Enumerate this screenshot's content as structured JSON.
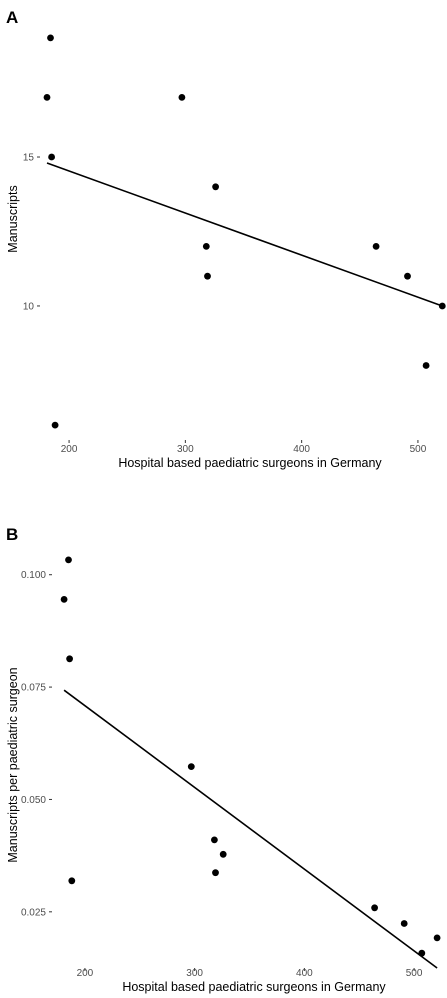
{
  "chart_data": [
    {
      "panel_label": "A",
      "type": "scatter",
      "xlabel": "Hospital based paediatric surgeons in Germany",
      "ylabel": "Manuscripts",
      "xlim": [
        175,
        525
      ],
      "ylim": [
        5.5,
        19.6
      ],
      "xticks": [
        200,
        300,
        400,
        500
      ],
      "xtick_labels": [
        "200",
        "300",
        "400",
        "500"
      ],
      "yticks": [
        10,
        15
      ],
      "ytick_labels": [
        "10",
        "15"
      ],
      "grid": false,
      "legend": "none",
      "points": [
        {
          "x": 184,
          "y": 19
        },
        {
          "x": 181,
          "y": 17
        },
        {
          "x": 185,
          "y": 15
        },
        {
          "x": 188,
          "y": 6
        },
        {
          "x": 297,
          "y": 17
        },
        {
          "x": 326,
          "y": 14
        },
        {
          "x": 318,
          "y": 12
        },
        {
          "x": 319,
          "y": 11
        },
        {
          "x": 464,
          "y": 12
        },
        {
          "x": 491,
          "y": 11
        },
        {
          "x": 507,
          "y": 8
        },
        {
          "x": 521,
          "y": 10
        }
      ],
      "trend_line": {
        "x": [
          181,
          521
        ],
        "y": [
          14.8,
          10.0
        ]
      }
    },
    {
      "panel_label": "B",
      "type": "scatter",
      "xlabel": "Hospital based paediatric surgeons in Germany",
      "ylabel": "Manuscripts per paediatric surgeon",
      "xlim": [
        170,
        530
      ],
      "ylim": [
        0.0125,
        0.1055
      ],
      "xticks": [
        200,
        300,
        400,
        500
      ],
      "xtick_labels": [
        "200",
        "300",
        "400",
        "500"
      ],
      "yticks": [
        0.025,
        0.05,
        0.075,
        0.1
      ],
      "ytick_labels": [
        "0.025",
        "0.050",
        "0.075",
        "0.100"
      ],
      "grid": false,
      "legend": "none",
      "points": [
        {
          "x": 185,
          "y": 0.1033
        },
        {
          "x": 181,
          "y": 0.0945
        },
        {
          "x": 186,
          "y": 0.0813
        },
        {
          "x": 188,
          "y": 0.0319
        },
        {
          "x": 297,
          "y": 0.0573
        },
        {
          "x": 318,
          "y": 0.041
        },
        {
          "x": 319,
          "y": 0.0337
        },
        {
          "x": 326,
          "y": 0.0378
        },
        {
          "x": 464,
          "y": 0.0259
        },
        {
          "x": 491,
          "y": 0.0224
        },
        {
          "x": 507,
          "y": 0.0158
        },
        {
          "x": 521,
          "y": 0.0192
        }
      ],
      "trend_line": {
        "x": [
          181,
          521
        ],
        "y": [
          0.0743,
          0.0125
        ]
      }
    }
  ]
}
